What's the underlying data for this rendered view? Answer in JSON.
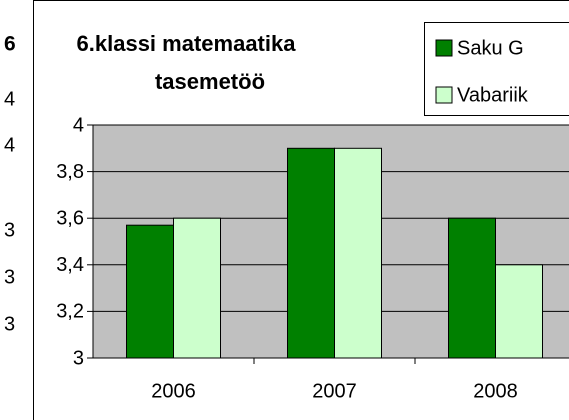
{
  "chart_data": {
    "type": "bar",
    "title": [
      "6.klassi matemaatika",
      "tasemetöö"
    ],
    "categories": [
      "2006",
      "2007",
      "2008"
    ],
    "series": [
      {
        "name": "Saku G",
        "color": "#008000",
        "values": [
          3.57,
          3.9,
          3.6
        ]
      },
      {
        "name": "Vabariik",
        "color": "#ccffcc",
        "values": [
          3.6,
          3.9,
          3.4
        ]
      }
    ],
    "ylim": [
      3,
      4
    ],
    "yticks": [
      3,
      {
        "value": 3.2,
        "label": "3,2"
      },
      {
        "value": 3.4,
        "label": "3,4"
      },
      {
        "value": 3.6,
        "label": "3,6"
      },
      {
        "value": 3.8,
        "label": "3,8"
      },
      4
    ],
    "grid": true,
    "legend": "top-right",
    "plot_background": "#c0c0c0"
  },
  "background_fragments": [
    "6",
    "4",
    "4",
    "3",
    "3",
    "3"
  ]
}
